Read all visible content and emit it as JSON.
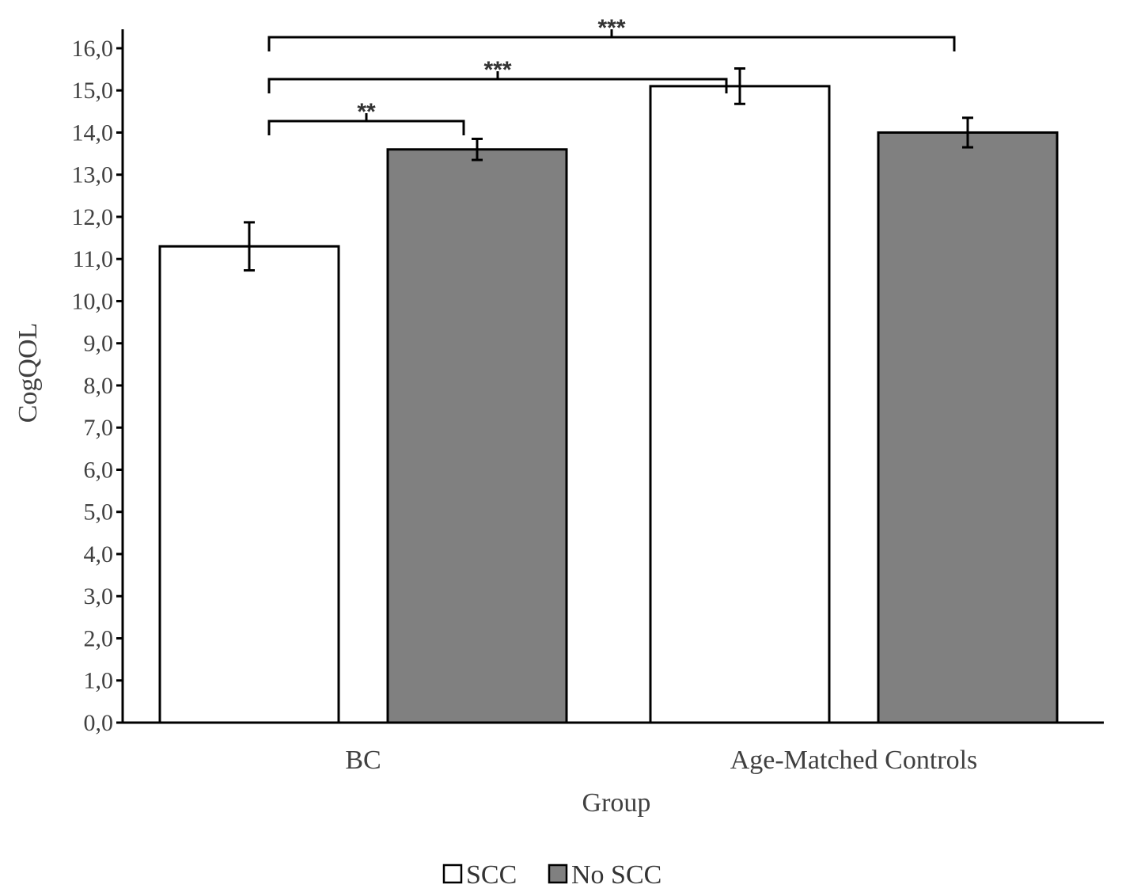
{
  "chart_data": {
    "type": "bar",
    "title": "",
    "xlabel": "Group",
    "ylabel": "CogQOL",
    "ylim": [
      0,
      16
    ],
    "ytick_step": 1,
    "ytick_labels": [
      "0,0",
      "1,0",
      "2,0",
      "3,0",
      "4,0",
      "5,0",
      "6,0",
      "7,0",
      "8,0",
      "9,0",
      "10,0",
      "11,0",
      "12,0",
      "13,0",
      "14,0",
      "15,0",
      "16,0"
    ],
    "categories": [
      "BC",
      "Age-Matched Controls"
    ],
    "series": [
      {
        "name": "SCC",
        "values": [
          11.3,
          15.1
        ],
        "errors": [
          0.57,
          0.42
        ],
        "color": "#ffffff"
      },
      {
        "name": "No SCC",
        "values": [
          13.6,
          14.0
        ],
        "errors": [
          0.25,
          0.35
        ],
        "color": "#808080"
      }
    ],
    "significance": [
      {
        "label": "**",
        "from": [
          0,
          0
        ],
        "to": [
          0,
          1
        ]
      },
      {
        "label": "***",
        "from": [
          0,
          0
        ],
        "to": [
          1,
          0
        ]
      },
      {
        "label": "***",
        "from": [
          0,
          0
        ],
        "to": [
          1,
          1
        ]
      }
    ],
    "legend": {
      "placement": "bottom-center",
      "entries": [
        "SCC",
        "No SCC"
      ]
    },
    "grid": false,
    "colors": {
      "axis": "#000000",
      "text": "#404040",
      "bar_edge": "#000000"
    }
  }
}
